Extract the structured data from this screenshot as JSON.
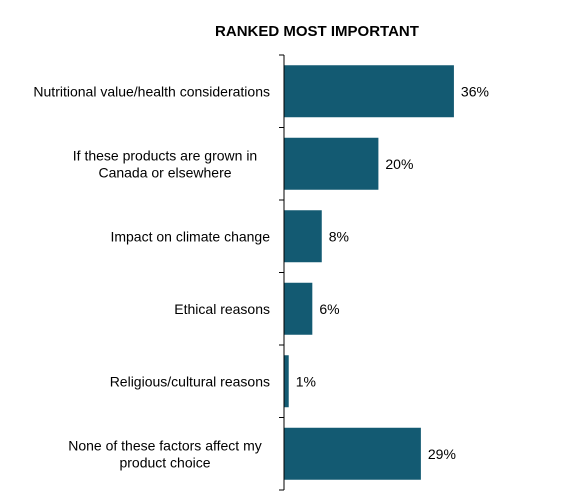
{
  "chart_data": {
    "type": "bar",
    "orientation": "horizontal",
    "title": "RANKED MOST IMPORTANT",
    "categories": [
      "Nutritional value/health considerations",
      "If these products are grown in Canada or elsewhere",
      "Impact on climate change",
      "Ethical reasons",
      "Religious/cultural reasons",
      "None of these factors affect my product choice"
    ],
    "category_lines": [
      [
        "Nutritional value/health considerations"
      ],
      [
        "If these products are grown in",
        "Canada or elsewhere"
      ],
      [
        "Impact on climate change"
      ],
      [
        "Ethical reasons"
      ],
      [
        "Religious/cultural reasons"
      ],
      [
        "None of these factors affect my",
        "product choice"
      ]
    ],
    "values": [
      36,
      20,
      8,
      6,
      1,
      29
    ],
    "value_labels": [
      "36%",
      "20%",
      "8%",
      "6%",
      "1%",
      "29%"
    ],
    "xlim": [
      0,
      100
    ],
    "grid": false,
    "legend": "none",
    "colors": {
      "bar": "#135a72",
      "axis": "#000000",
      "text": "#000000"
    }
  }
}
